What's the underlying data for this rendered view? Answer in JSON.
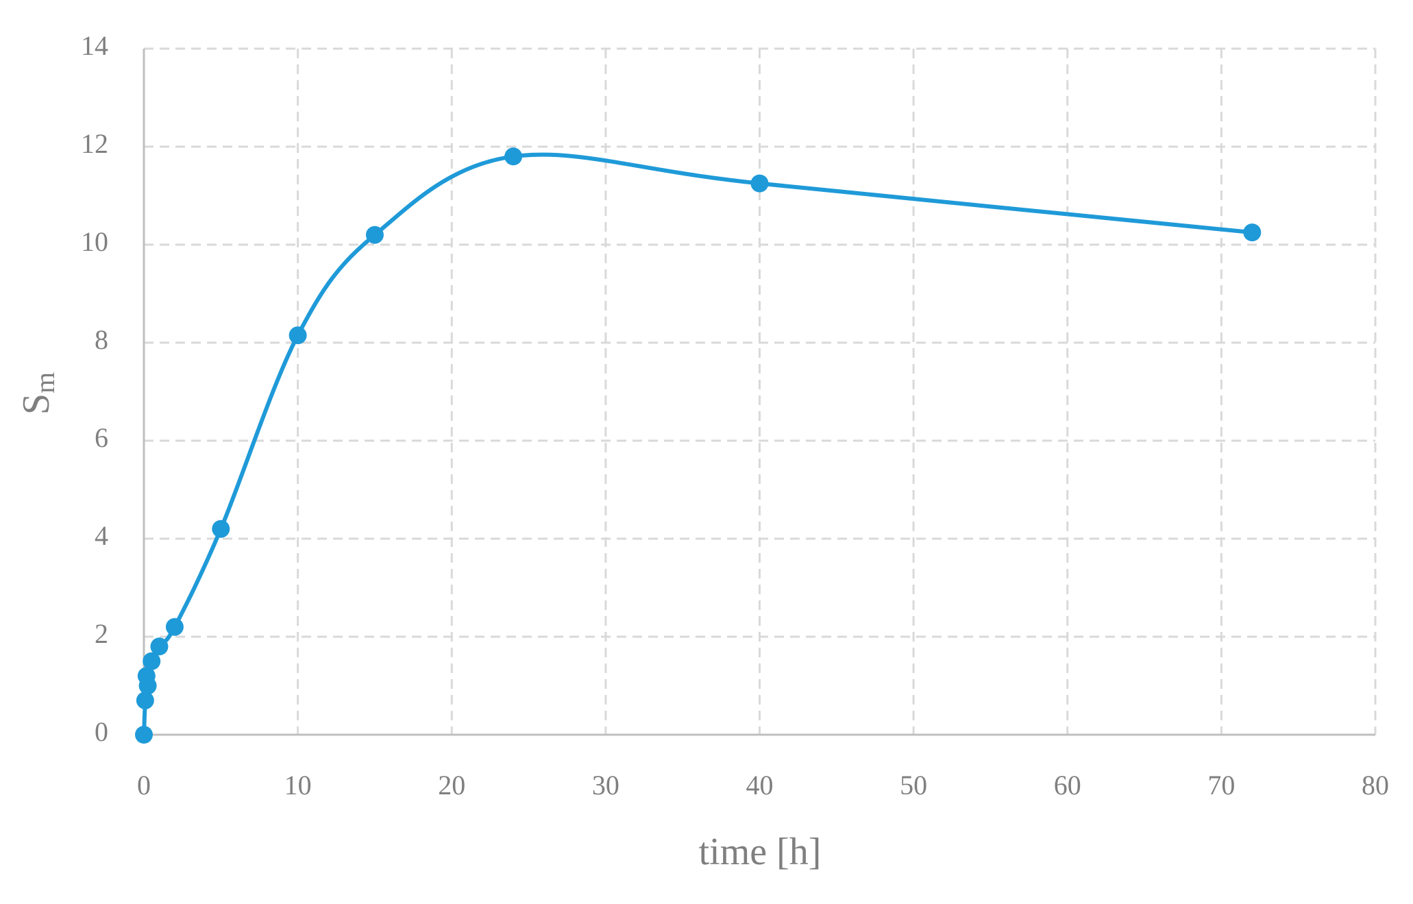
{
  "chart_data": {
    "type": "line",
    "xlabel": "time [h]",
    "ylabel": "S",
    "ylabel_subscript": "m",
    "x": [
      0,
      0.083,
      0.17,
      0.25,
      0.5,
      1,
      2,
      5,
      10,
      15,
      24,
      40,
      72
    ],
    "series": [
      {
        "color": "#1f9ad8",
        "values": [
          0,
          0.7,
          1.2,
          1.0,
          1.5,
          1.8,
          2.2,
          4.2,
          8.15,
          10.2,
          11.8,
          11.25,
          10.25
        ]
      }
    ],
    "smooth": true,
    "markers": true,
    "xlim": [
      0,
      80
    ],
    "xticks": [
      0,
      10,
      20,
      30,
      40,
      50,
      60,
      70,
      80
    ],
    "ylim": [
      0,
      14
    ],
    "yticks": [
      0,
      2,
      4,
      6,
      8,
      10,
      12,
      14
    ],
    "grid": true
  }
}
